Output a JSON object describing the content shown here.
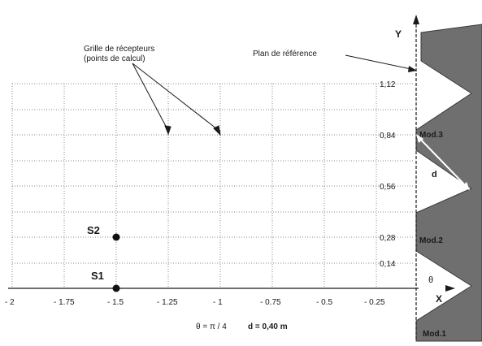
{
  "axes": {
    "y_label": "Y",
    "x_label": "X",
    "x_ticks": [
      "- 2",
      "- 1.75",
      "- 1.5",
      "- 1.25",
      "- 1",
      "- 0.75",
      "- 0.5",
      "- 0.25"
    ],
    "y_ticks": [
      "1,12",
      "0,84",
      "0,56",
      "0,28",
      "0,14"
    ]
  },
  "annotations": {
    "grid_caption_line1": "Grille de récepteurs",
    "grid_caption_line2": "(points de calcul)",
    "reference_plane": "Plan de référence",
    "theta_formula": "θ = π / 4",
    "d_formula": "d =  0,40 m",
    "d_symbol": "d",
    "theta_symbol": "θ"
  },
  "sources": [
    "S2",
    "S1"
  ],
  "modules": [
    "Mod.3",
    "Mod.2",
    "Mod.1"
  ],
  "colors": {
    "module_fill": "#6f6f6f",
    "grid": "#8a8a8a",
    "ink": "#1a1a1a"
  }
}
